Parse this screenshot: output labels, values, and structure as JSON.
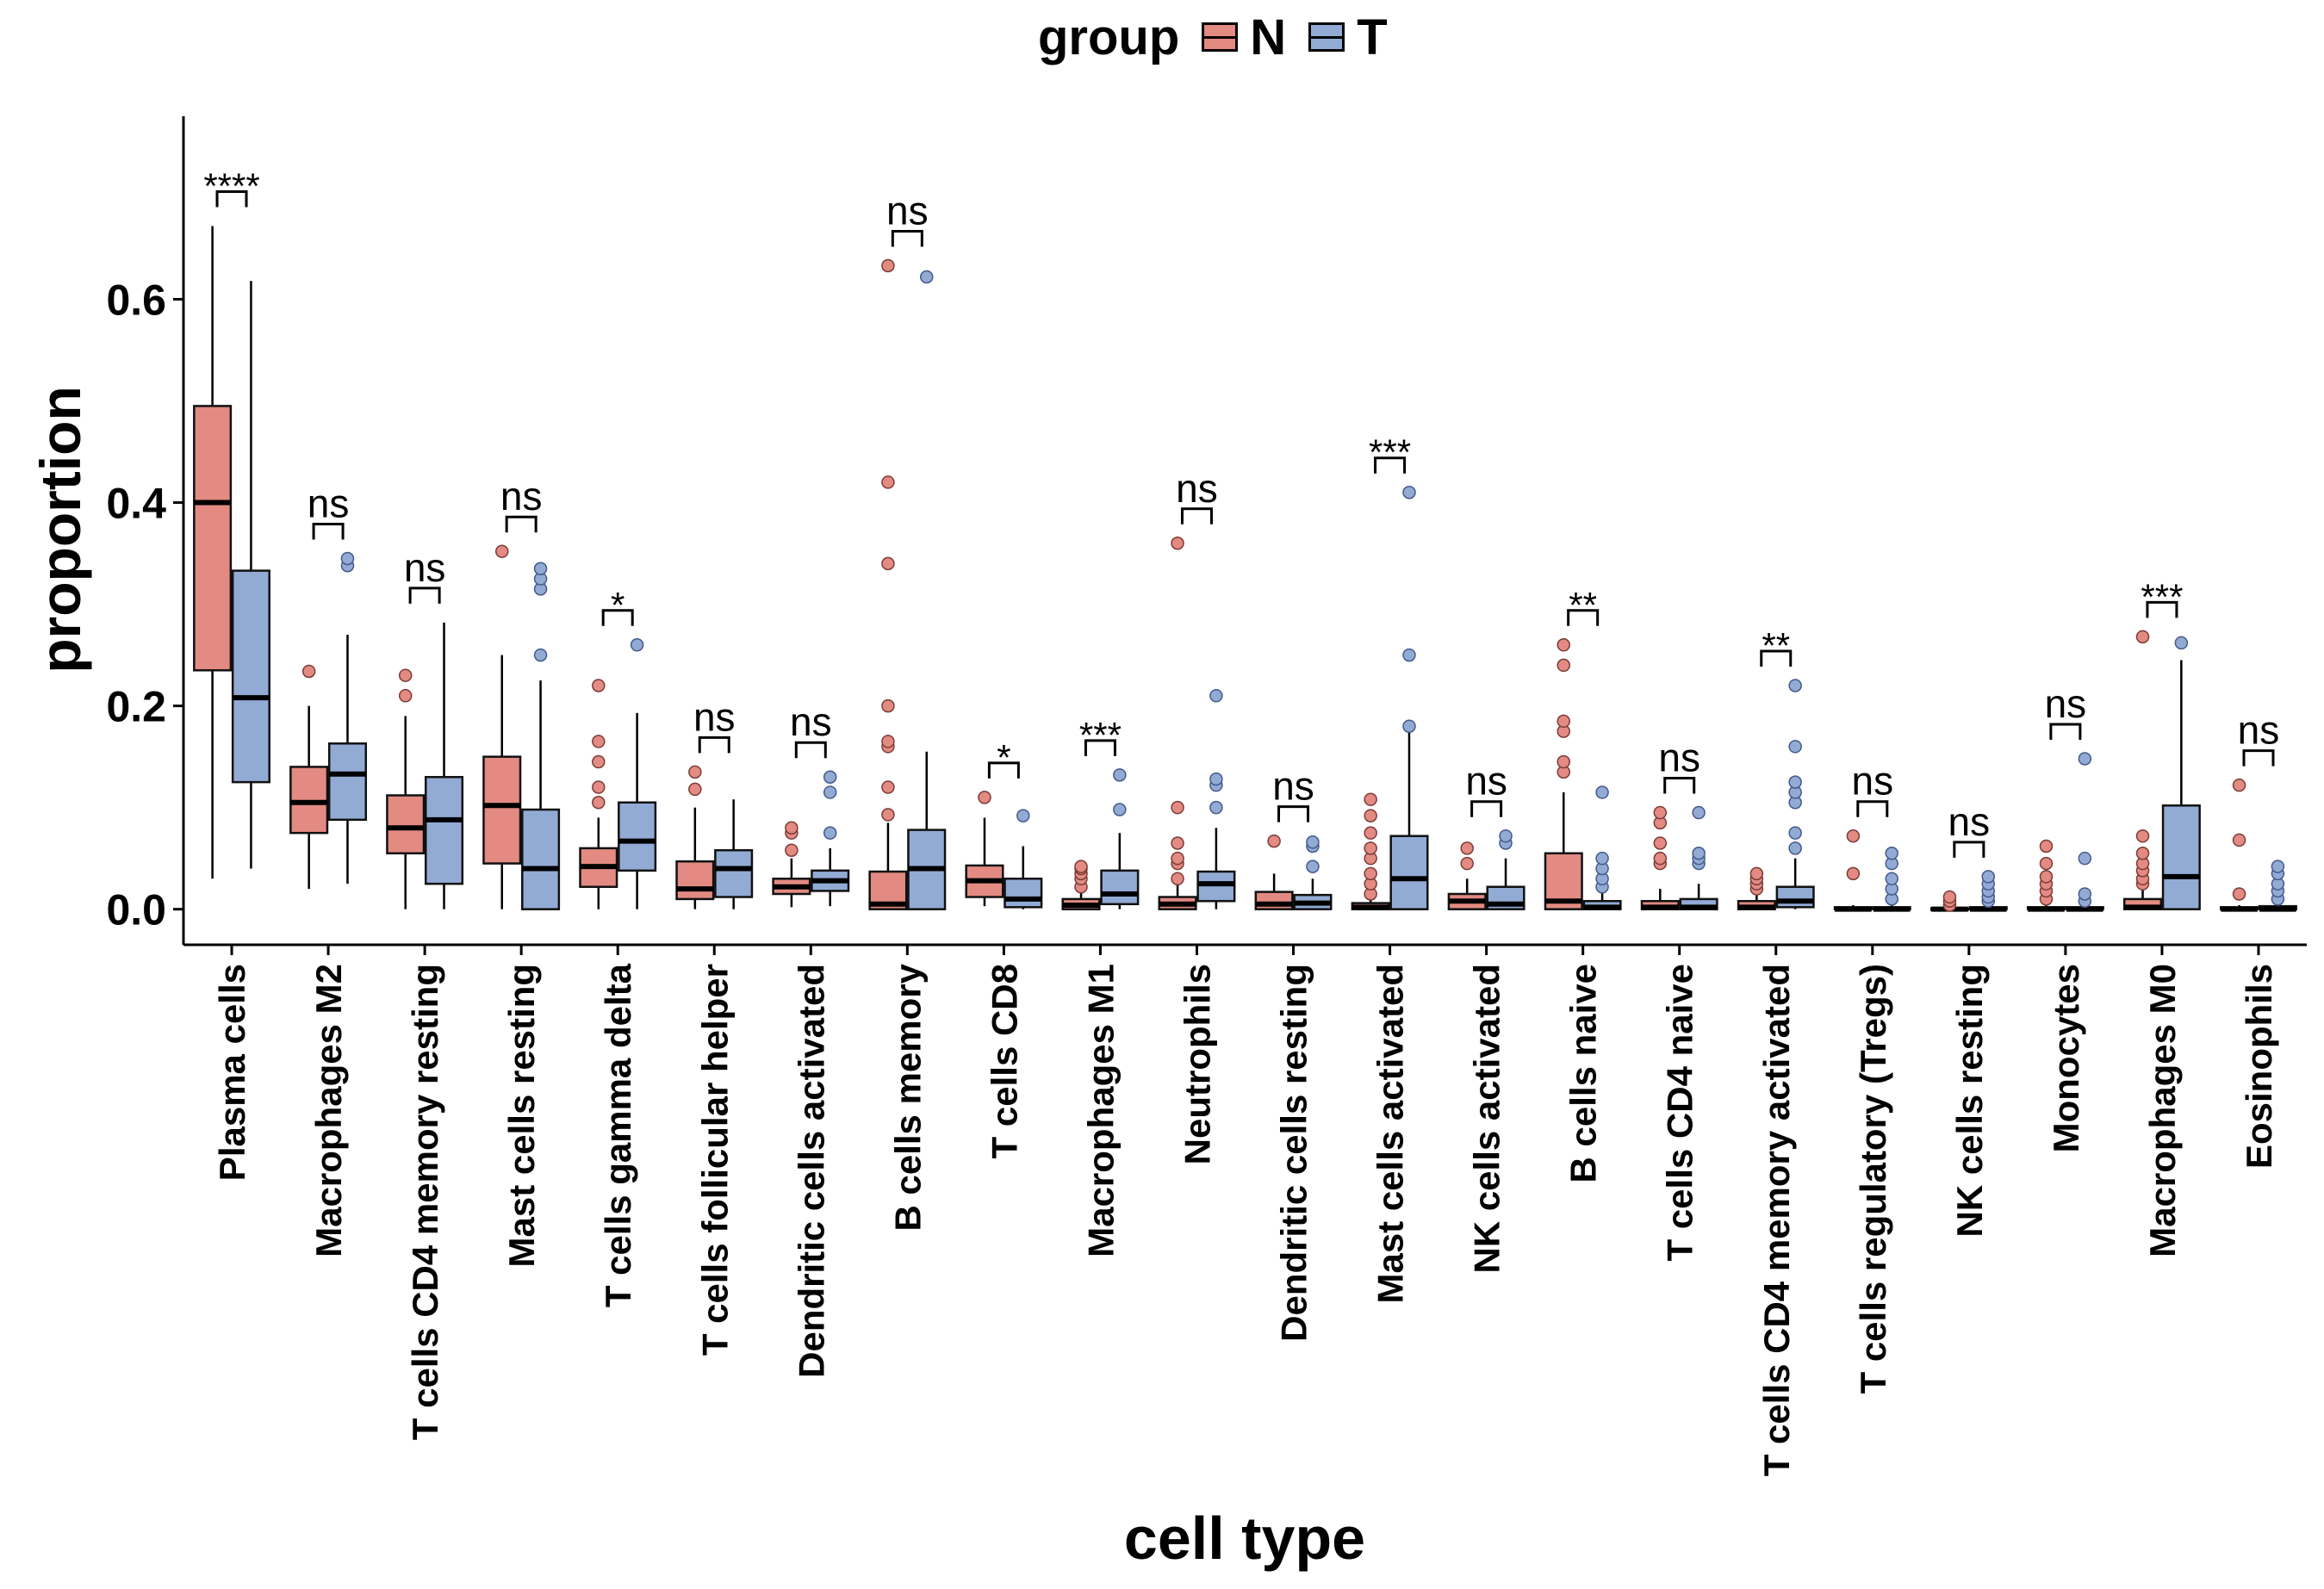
{
  "legend": {
    "title": "group",
    "items": [
      {
        "label": "N",
        "color": "#E38A83"
      },
      {
        "label": "T",
        "color": "#92ABD5"
      }
    ]
  },
  "chart_data": {
    "type": "boxplot",
    "xlabel": "cell type",
    "ylabel": "proportion",
    "ylim": [
      -0.035,
      0.78
    ],
    "yticks": [
      0.0,
      0.2,
      0.4,
      0.6
    ],
    "ytick_labels": [
      "0.0",
      "0.2",
      "0.4",
      "0.6"
    ],
    "grid": false,
    "legend_position": "top",
    "colors": {
      "N": "#E38A83",
      "T": "#92ABD5"
    },
    "categories": [
      {
        "name": "Plasma cells",
        "sig": "****",
        "N": {
          "q1": 0.235,
          "median": 0.4,
          "q3": 0.495,
          "lo": 0.03,
          "hi": 0.672,
          "outliers": []
        },
        "T": {
          "q1": 0.125,
          "median": 0.208,
          "q3": 0.333,
          "lo": 0.04,
          "hi": 0.618,
          "outliers": []
        }
      },
      {
        "name": "Macrophages M2",
        "sig": "ns",
        "N": {
          "q1": 0.075,
          "median": 0.105,
          "q3": 0.14,
          "lo": 0.02,
          "hi": 0.2,
          "outliers": [
            0.234
          ]
        },
        "T": {
          "q1": 0.088,
          "median": 0.133,
          "q3": 0.163,
          "lo": 0.025,
          "hi": 0.27,
          "outliers": [
            0.338,
            0.345
          ]
        }
      },
      {
        "name": "T cells CD4 memory resting",
        "sig": "ns",
        "N": {
          "q1": 0.055,
          "median": 0.08,
          "q3": 0.112,
          "lo": 0.0,
          "hi": 0.19,
          "outliers": [
            0.21,
            0.23
          ]
        },
        "T": {
          "q1": 0.025,
          "median": 0.088,
          "q3": 0.13,
          "lo": 0.0,
          "hi": 0.282,
          "outliers": []
        }
      },
      {
        "name": "Mast cells resting",
        "sig": "ns",
        "N": {
          "q1": 0.045,
          "median": 0.102,
          "q3": 0.15,
          "lo": 0.0,
          "hi": 0.25,
          "outliers": [
            0.352
          ]
        },
        "T": {
          "q1": 0.0,
          "median": 0.04,
          "q3": 0.098,
          "lo": 0.0,
          "hi": 0.225,
          "outliers": [
            0.25,
            0.315,
            0.325,
            0.335
          ]
        }
      },
      {
        "name": "T cells gamma delta",
        "sig": "*",
        "N": {
          "q1": 0.022,
          "median": 0.042,
          "q3": 0.06,
          "lo": 0.0,
          "hi": 0.09,
          "outliers": [
            0.105,
            0.12,
            0.145,
            0.165,
            0.22
          ]
        },
        "T": {
          "q1": 0.038,
          "median": 0.067,
          "q3": 0.105,
          "lo": 0.0,
          "hi": 0.193,
          "outliers": [
            0.26
          ]
        }
      },
      {
        "name": "T cells follicular helper",
        "sig": "ns",
        "N": {
          "q1": 0.01,
          "median": 0.02,
          "q3": 0.047,
          "lo": 0.0,
          "hi": 0.1,
          "outliers": [
            0.118,
            0.135
          ]
        },
        "T": {
          "q1": 0.012,
          "median": 0.04,
          "q3": 0.058,
          "lo": 0.0,
          "hi": 0.108,
          "outliers": []
        }
      },
      {
        "name": "Dendritic cells activated",
        "sig": "ns",
        "N": {
          "q1": 0.015,
          "median": 0.022,
          "q3": 0.03,
          "lo": 0.002,
          "hi": 0.05,
          "outliers": [
            0.058,
            0.075,
            0.08
          ]
        },
        "T": {
          "q1": 0.018,
          "median": 0.028,
          "q3": 0.038,
          "lo": 0.003,
          "hi": 0.06,
          "outliers": [
            0.075,
            0.115,
            0.13
          ]
        }
      },
      {
        "name": "B cells memory",
        "sig": "ns",
        "N": {
          "q1": 0.0,
          "median": 0.005,
          "q3": 0.037,
          "lo": 0.0,
          "hi": 0.085,
          "outliers": [
            0.093,
            0.12,
            0.16,
            0.165,
            0.2,
            0.34,
            0.42,
            0.633
          ]
        },
        "T": {
          "q1": 0.0,
          "median": 0.04,
          "q3": 0.078,
          "lo": 0.0,
          "hi": 0.155,
          "outliers": [
            0.622
          ]
        }
      },
      {
        "name": "T cells CD8",
        "sig": "*",
        "N": {
          "q1": 0.012,
          "median": 0.028,
          "q3": 0.043,
          "lo": 0.003,
          "hi": 0.09,
          "outliers": [
            0.11
          ]
        },
        "T": {
          "q1": 0.002,
          "median": 0.01,
          "q3": 0.03,
          "lo": 0.0,
          "hi": 0.062,
          "outliers": [
            0.092
          ]
        }
      },
      {
        "name": "Macrophages M1",
        "sig": "***",
        "N": {
          "q1": 0.0,
          "median": 0.004,
          "q3": 0.01,
          "lo": 0.0,
          "hi": 0.018,
          "outliers": [
            0.022,
            0.03,
            0.035,
            0.04,
            0.042
          ]
        },
        "T": {
          "q1": 0.005,
          "median": 0.015,
          "q3": 0.038,
          "lo": 0.0,
          "hi": 0.075,
          "outliers": [
            0.098,
            0.132
          ]
        }
      },
      {
        "name": "Neutrophils",
        "sig": "ns",
        "N": {
          "q1": 0.0,
          "median": 0.005,
          "q3": 0.012,
          "lo": 0.0,
          "hi": 0.025,
          "outliers": [
            0.03,
            0.045,
            0.05,
            0.065,
            0.1,
            0.36
          ]
        },
        "T": {
          "q1": 0.008,
          "median": 0.025,
          "q3": 0.037,
          "lo": 0.0,
          "hi": 0.08,
          "outliers": [
            0.1,
            0.122,
            0.128,
            0.21
          ]
        }
      },
      {
        "name": "Dendritic cells resting",
        "sig": "ns",
        "N": {
          "q1": 0.0,
          "median": 0.005,
          "q3": 0.017,
          "lo": 0.0,
          "hi": 0.035,
          "outliers": [
            0.067
          ]
        },
        "T": {
          "q1": 0.0,
          "median": 0.006,
          "q3": 0.014,
          "lo": 0.0,
          "hi": 0.03,
          "outliers": [
            0.042,
            0.062,
            0.066
          ]
        }
      },
      {
        "name": "Mast cells activated",
        "sig": "***",
        "N": {
          "q1": 0.0,
          "median": 0.002,
          "q3": 0.006,
          "lo": 0.0,
          "hi": 0.012,
          "outliers": [
            0.015,
            0.025,
            0.035,
            0.05,
            0.06,
            0.075,
            0.092,
            0.108
          ]
        },
        "T": {
          "q1": 0.0,
          "median": 0.03,
          "q3": 0.072,
          "lo": 0.0,
          "hi": 0.175,
          "outliers": [
            0.18,
            0.25,
            0.41
          ]
        }
      },
      {
        "name": "NK cells activated",
        "sig": "ns",
        "N": {
          "q1": 0.0,
          "median": 0.008,
          "q3": 0.015,
          "lo": 0.0,
          "hi": 0.03,
          "outliers": [
            0.045,
            0.06
          ]
        },
        "T": {
          "q1": 0.0,
          "median": 0.005,
          "q3": 0.022,
          "lo": 0.0,
          "hi": 0.05,
          "outliers": [
            0.065,
            0.072
          ]
        }
      },
      {
        "name": "B cells naive",
        "sig": "**",
        "N": {
          "q1": 0.0,
          "median": 0.008,
          "q3": 0.055,
          "lo": 0.0,
          "hi": 0.115,
          "outliers": [
            0.135,
            0.145,
            0.175,
            0.185,
            0.24,
            0.26
          ]
        },
        "T": {
          "q1": 0.0,
          "median": 0.002,
          "q3": 0.008,
          "lo": 0.0,
          "hi": 0.018,
          "outliers": [
            0.022,
            0.03,
            0.04,
            0.05,
            0.115
          ]
        }
      },
      {
        "name": "T cells CD4 naive",
        "sig": "ns",
        "N": {
          "q1": 0.0,
          "median": 0.002,
          "q3": 0.008,
          "lo": 0.0,
          "hi": 0.02,
          "outliers": [
            0.045,
            0.05,
            0.065,
            0.085,
            0.095
          ]
        },
        "T": {
          "q1": 0.0,
          "median": 0.002,
          "q3": 0.01,
          "lo": 0.0,
          "hi": 0.025,
          "outliers": [
            0.045,
            0.05,
            0.055,
            0.095
          ]
        }
      },
      {
        "name": "T cells CD4 memory activated",
        "sig": "**",
        "N": {
          "q1": 0.0,
          "median": 0.002,
          "q3": 0.008,
          "lo": 0.0,
          "hi": 0.015,
          "outliers": [
            0.02,
            0.025,
            0.03,
            0.035
          ]
        },
        "T": {
          "q1": 0.002,
          "median": 0.008,
          "q3": 0.022,
          "lo": 0.0,
          "hi": 0.05,
          "outliers": [
            0.06,
            0.075,
            0.105,
            0.115,
            0.125,
            0.16,
            0.22
          ]
        }
      },
      {
        "name": "T cells regulatory (Tregs)",
        "sig": "ns",
        "N": {
          "q1": 0.0,
          "median": 0.0,
          "q3": 0.002,
          "lo": 0.0,
          "hi": 0.004,
          "outliers": [
            0.035,
            0.072
          ]
        },
        "T": {
          "q1": 0.0,
          "median": 0.0,
          "q3": 0.002,
          "lo": 0.0,
          "hi": 0.004,
          "outliers": [
            0.01,
            0.02,
            0.03,
            0.045,
            0.055
          ]
        }
      },
      {
        "name": "NK cells resting",
        "sig": "ns",
        "N": {
          "q1": 0.0,
          "median": 0.0,
          "q3": 0.001,
          "lo": 0.0,
          "hi": 0.002,
          "outliers": [
            0.004,
            0.008,
            0.012
          ]
        },
        "T": {
          "q1": 0.0,
          "median": 0.0,
          "q3": 0.002,
          "lo": 0.0,
          "hi": 0.004,
          "outliers": [
            0.008,
            0.012,
            0.018,
            0.025,
            0.032
          ]
        }
      },
      {
        "name": "Monocytes",
        "sig": "ns",
        "N": {
          "q1": 0.0,
          "median": 0.0,
          "q3": 0.002,
          "lo": 0.0,
          "hi": 0.005,
          "outliers": [
            0.01,
            0.018,
            0.025,
            0.032,
            0.045,
            0.062
          ]
        },
        "T": {
          "q1": 0.0,
          "median": 0.0,
          "q3": 0.002,
          "lo": 0.0,
          "hi": 0.004,
          "outliers": [
            0.008,
            0.015,
            0.05,
            0.148
          ]
        }
      },
      {
        "name": "Macrophages M0",
        "sig": "***",
        "N": {
          "q1": 0.0,
          "median": 0.002,
          "q3": 0.01,
          "lo": 0.0,
          "hi": 0.02,
          "outliers": [
            0.025,
            0.03,
            0.038,
            0.045,
            0.055,
            0.072,
            0.268
          ]
        },
        "T": {
          "q1": 0.0,
          "median": 0.032,
          "q3": 0.102,
          "lo": 0.0,
          "hi": 0.245,
          "outliers": [
            0.262
          ]
        }
      },
      {
        "name": "Eosinophils",
        "sig": "ns",
        "N": {
          "q1": 0.0,
          "median": 0.0,
          "q3": 0.002,
          "lo": 0.0,
          "hi": 0.004,
          "outliers": [
            0.015,
            0.068,
            0.122
          ]
        },
        "T": {
          "q1": 0.0,
          "median": 0.0,
          "q3": 0.003,
          "lo": 0.0,
          "hi": 0.006,
          "outliers": [
            0.01,
            0.018,
            0.025,
            0.035,
            0.042
          ]
        }
      }
    ]
  }
}
